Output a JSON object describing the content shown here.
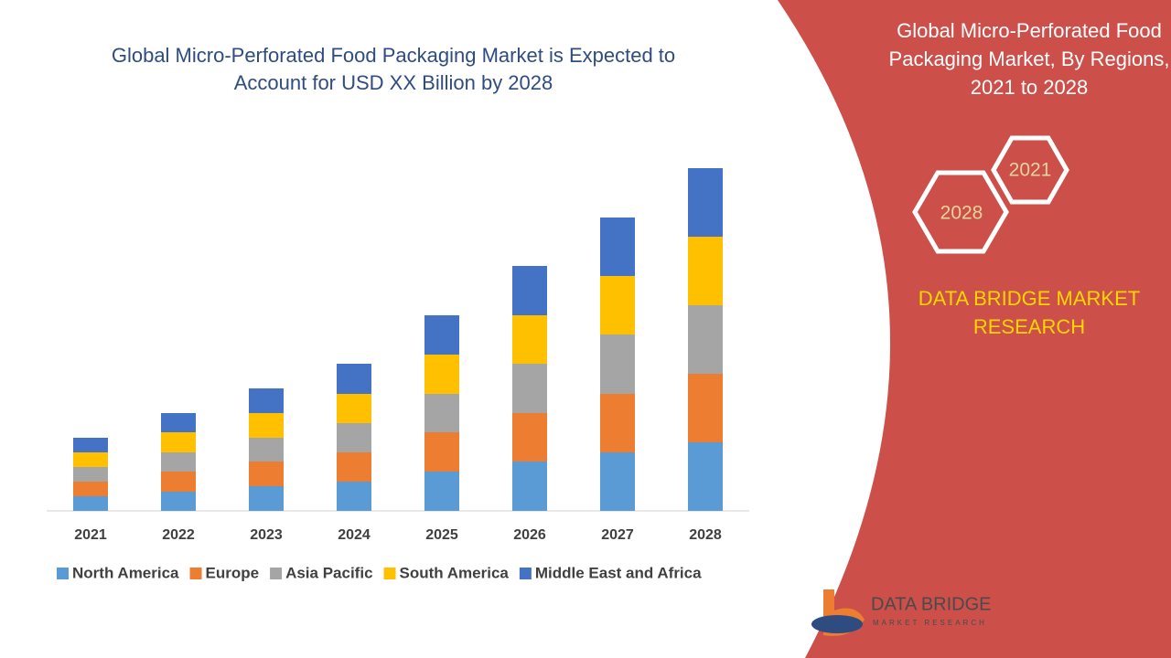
{
  "chart_data": {
    "type": "stacked-bar",
    "title": "Global Micro-Perforated Food Packaging Market is Expected to Account for USD XX Billion by 2028",
    "categories": [
      "2021",
      "2022",
      "2023",
      "2024",
      "2025",
      "2026",
      "2027",
      "2028"
    ],
    "series": [
      {
        "name": "North America",
        "color": "#5b9bd5",
        "values": [
          16,
          21,
          27,
          32,
          43,
          54,
          64,
          75
        ]
      },
      {
        "name": "Europe",
        "color": "#ed7d31",
        "values": [
          16,
          22,
          27,
          32,
          43,
          53,
          64,
          75
        ]
      },
      {
        "name": "Asia Pacific",
        "color": "#a5a5a5",
        "values": [
          16,
          21,
          26,
          32,
          42,
          54,
          65,
          75
        ]
      },
      {
        "name": "South America",
        "color": "#ffc000",
        "values": [
          16,
          22,
          27,
          32,
          43,
          53,
          64,
          75
        ]
      },
      {
        "name": "Middle East and Africa",
        "color": "#4472c4",
        "values": [
          16,
          21,
          27,
          33,
          43,
          54,
          64,
          75
        ]
      }
    ],
    "ylim": [
      0,
      375
    ]
  },
  "side_panel": {
    "title": "Global Micro-Perforated Food Packaging Market, By Regions, 2021 to 2028",
    "hexagons": [
      "2021",
      "2028"
    ],
    "brand": "DATA BRIDGE MARKET RESEARCH",
    "logo_text": "DATA BRIDGE",
    "logo_subtext": "MARKET RESEARCH"
  }
}
